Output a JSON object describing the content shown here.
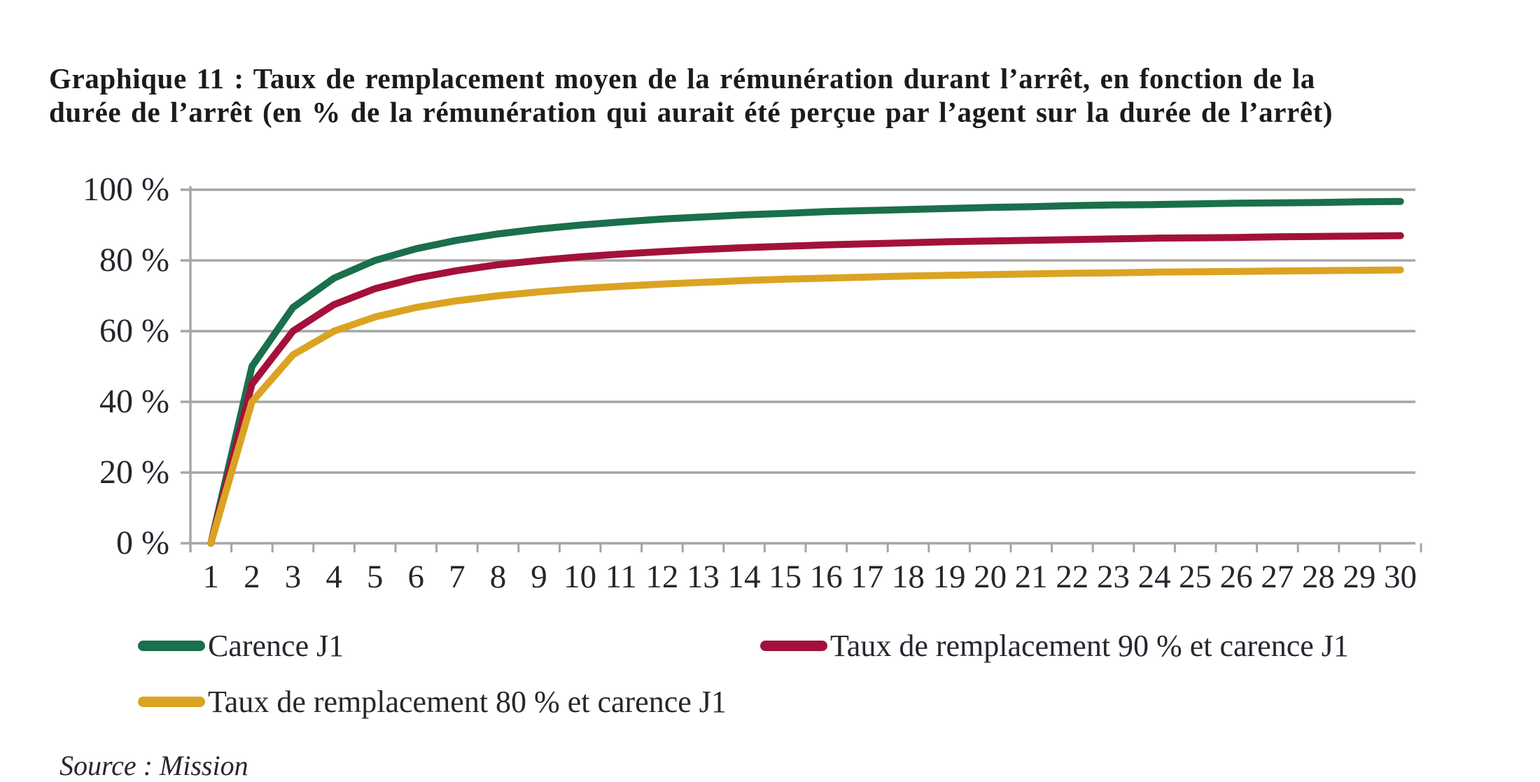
{
  "title": {
    "line1": "Graphique 11 : Taux de remplacement moyen de la rémunération durant l’arrêt, en fonction de la",
    "line2": "durée de l’arrêt (en % de la rémunération qui aurait été perçue par l’agent sur la durée de l’arrêt)"
  },
  "source": "Source : Mission",
  "colors": {
    "grid": "#a6a6a6",
    "axis": "#a6a6a6",
    "text": "#26262e",
    "background": "#ffffff"
  },
  "chart_data": {
    "type": "line",
    "x": [
      1,
      2,
      3,
      4,
      5,
      6,
      7,
      8,
      9,
      10,
      11,
      12,
      13,
      14,
      15,
      16,
      17,
      18,
      19,
      20,
      21,
      22,
      23,
      24,
      25,
      26,
      27,
      28,
      29,
      30
    ],
    "xlabel": "",
    "ylabel": "",
    "ylim": [
      0,
      100
    ],
    "y_ticks": [
      {
        "label": "0 %",
        "value": 0
      },
      {
        "label": "20 %",
        "value": 20
      },
      {
        "label": "40 %",
        "value": 40
      },
      {
        "label": "60 %",
        "value": 60
      },
      {
        "label": "80 %",
        "value": 80
      },
      {
        "label": "100 %",
        "value": 100
      }
    ],
    "grid": "horizontal",
    "legend_position": "bottom-left",
    "series": [
      {
        "name": "Carence J1",
        "color": "#1a6f4c",
        "values": [
          0,
          50,
          66.7,
          75,
          80,
          83.3,
          85.7,
          87.5,
          88.9,
          90,
          90.9,
          91.7,
          92.3,
          92.9,
          93.3,
          93.8,
          94.1,
          94.4,
          94.7,
          95,
          95.2,
          95.5,
          95.7,
          95.8,
          96,
          96.2,
          96.3,
          96.4,
          96.6,
          96.7
        ]
      },
      {
        "name": "Taux de remplacement 90 % et carence J1",
        "color": "#a3113b",
        "values": [
          0,
          45,
          60,
          67.5,
          72,
          75,
          77.1,
          78.8,
          80,
          81,
          81.8,
          82.5,
          83.1,
          83.6,
          84,
          84.4,
          84.7,
          85,
          85.3,
          85.5,
          85.7,
          85.9,
          86.1,
          86.3,
          86.4,
          86.5,
          86.7,
          86.8,
          86.9,
          87
        ]
      },
      {
        "name": "Taux de remplacement 80 % et carence J1",
        "color": "#dba322",
        "values": [
          0,
          40,
          53.3,
          60,
          64,
          66.7,
          68.6,
          70,
          71.1,
          72,
          72.7,
          73.3,
          73.8,
          74.3,
          74.7,
          75,
          75.3,
          75.6,
          75.8,
          76,
          76.2,
          76.4,
          76.5,
          76.7,
          76.8,
          76.9,
          77,
          77.1,
          77.2,
          77.3
        ]
      }
    ]
  }
}
